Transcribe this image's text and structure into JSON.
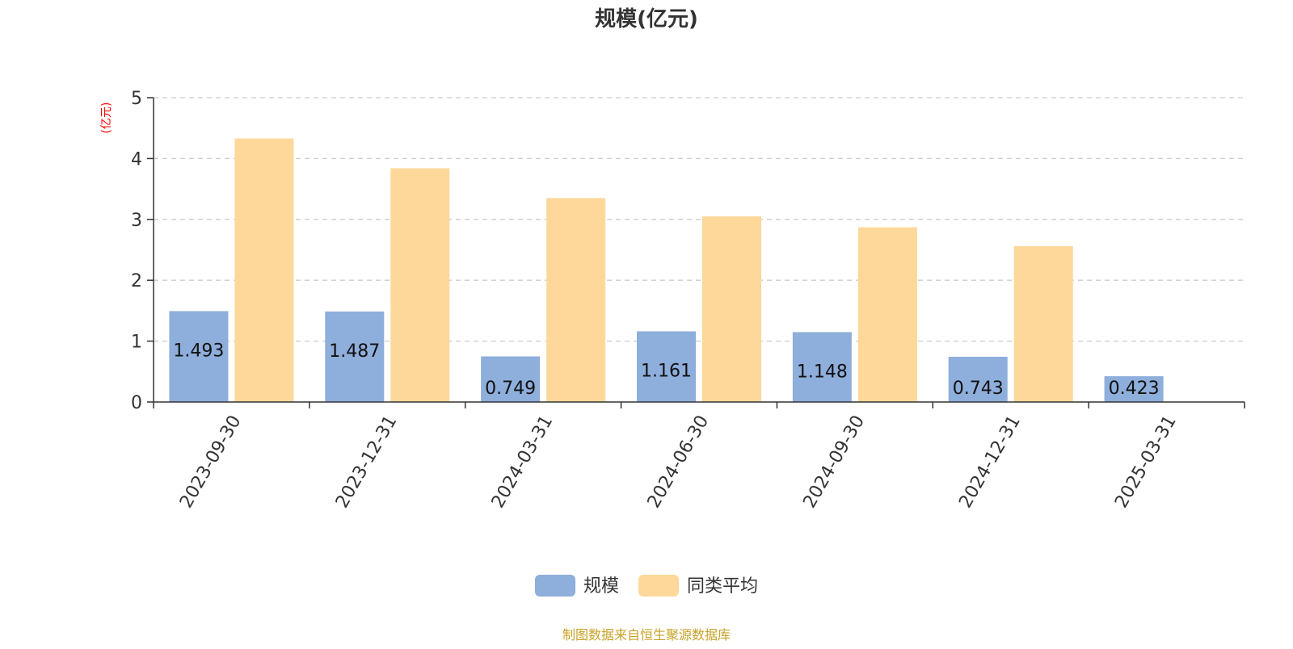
{
  "chart_data": {
    "type": "bar",
    "title": "规模(亿元)",
    "ylabel": "(亿元)",
    "xlabel": "",
    "categories": [
      "2023-09-30",
      "2023-12-31",
      "2024-03-31",
      "2024-06-30",
      "2024-09-30",
      "2024-12-31",
      "2025-03-31"
    ],
    "series": [
      {
        "name": "规模",
        "color": "#8eaedb",
        "values": [
          1.493,
          1.487,
          0.749,
          1.161,
          1.148,
          0.743,
          0.423
        ],
        "labels": [
          "1.493",
          "1.487",
          "0.749",
          "1.161",
          "1.148",
          "0.743",
          "0.423"
        ]
      },
      {
        "name": "同类平均",
        "color": "#fdd89a",
        "values": [
          4.33,
          3.84,
          3.35,
          3.05,
          2.87,
          2.56,
          null
        ]
      }
    ],
    "ylim": [
      0,
      5
    ],
    "yticks": [
      0,
      1,
      2,
      3,
      4,
      5
    ],
    "grid": true,
    "legend_position": "bottom"
  },
  "footer": {
    "source": "制图数据来自恒生聚源数据库"
  },
  "colors": {
    "title": "#333333",
    "unit": "#ff0000",
    "axis": "#333333",
    "grid": "#cccccc",
    "source": "#c9a227"
  }
}
